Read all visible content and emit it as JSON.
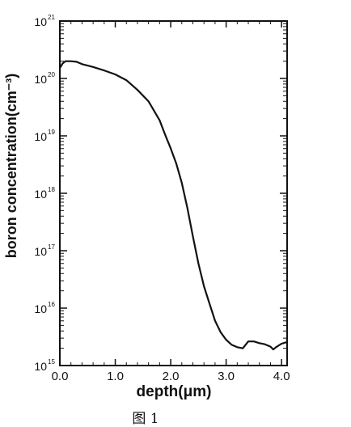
{
  "chart_data": {
    "type": "line",
    "title": "",
    "xlabel": "depth(μm)",
    "ylabel": "boron concentration(cm⁻³)",
    "xlim": [
      0,
      4.1
    ],
    "ylim_log10": [
      15,
      21
    ],
    "y_scale": "log",
    "x_ticks": [
      {
        "value": 0.0,
        "label": "0.0"
      },
      {
        "value": 1.0,
        "label": "1.0"
      },
      {
        "value": 2.0,
        "label": "2.0"
      },
      {
        "value": 3.0,
        "label": "3.0"
      },
      {
        "value": 4.0,
        "label": "4.0"
      }
    ],
    "y_ticks": [
      {
        "exp": 15,
        "base": "10",
        "power": "15"
      },
      {
        "exp": 16,
        "base": "10",
        "power": "16"
      },
      {
        "exp": 17,
        "base": "10",
        "power": "17"
      },
      {
        "exp": 18,
        "base": "10",
        "power": "18"
      },
      {
        "exp": 19,
        "base": "10",
        "power": "19"
      },
      {
        "exp": 20,
        "base": "10",
        "power": "20"
      },
      {
        "exp": 21,
        "base": "10",
        "power": "21"
      }
    ],
    "grid": false,
    "legend": "none",
    "series": [
      {
        "x": [
          0.0,
          0.05,
          0.1,
          0.2,
          0.3,
          0.4,
          0.6,
          0.8,
          1.0,
          1.2,
          1.4,
          1.6,
          1.8,
          1.9,
          2.0,
          2.1,
          2.2,
          2.3,
          2.4,
          2.5,
          2.6,
          2.7,
          2.8,
          2.9,
          3.0,
          3.1,
          3.2,
          3.3,
          3.4,
          3.5,
          3.6,
          3.7,
          3.8,
          3.85,
          3.9,
          4.0,
          4.1
        ],
        "log10_y": [
          20.18,
          20.26,
          20.3,
          20.3,
          20.29,
          20.25,
          20.2,
          20.14,
          20.07,
          19.97,
          19.8,
          19.6,
          19.27,
          19.02,
          18.78,
          18.52,
          18.18,
          17.75,
          17.25,
          16.78,
          16.38,
          16.08,
          15.78,
          15.58,
          15.45,
          15.36,
          15.32,
          15.3,
          15.42,
          15.42,
          15.39,
          15.37,
          15.33,
          15.28,
          15.32,
          15.38,
          15.41
        ]
      }
    ],
    "caption": "图 1"
  }
}
